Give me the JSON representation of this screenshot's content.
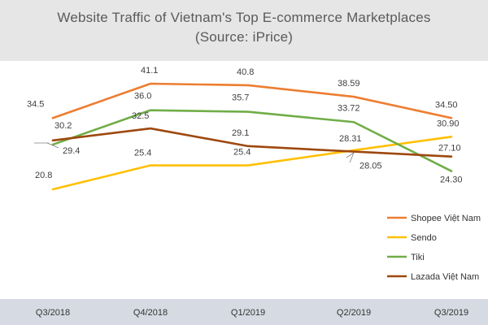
{
  "chart_data": {
    "type": "line",
    "title": "Website Traffic of Vietnam's Top E-commerce Marketplaces",
    "subtitle": "(Source:  iPrice)",
    "categories": [
      "Q3/2018",
      "Q4/2018",
      "Q1/2019",
      "Q2/2019",
      "Q3/2019"
    ],
    "xlabel": "",
    "ylabel": "",
    "ylim": [
      10,
      50
    ],
    "grid": false,
    "legend_position": "right",
    "series": [
      {
        "name": "Shopee Việt Nam",
        "color": "#ed7d31",
        "values": [
          34.5,
          41.1,
          40.8,
          38.59,
          34.5
        ],
        "labels": [
          "34.5",
          "41.1",
          "40.8",
          "38.59",
          "34.50"
        ]
      },
      {
        "name": "Sendo",
        "color": "#ffc000",
        "values": [
          20.8,
          25.4,
          25.4,
          28.31,
          30.9
        ],
        "labels": [
          "20.8",
          "25.4",
          "25.4",
          "28.31",
          "30.90"
        ]
      },
      {
        "name": "Tiki",
        "color": "#70ad47",
        "values": [
          29.4,
          36.0,
          35.7,
          33.72,
          24.3
        ],
        "labels": [
          "29.4",
          "36.0",
          "35.7",
          "33.72",
          "24.30"
        ]
      },
      {
        "name": "Lazada Việt Nam",
        "color": "#9e480e",
        "values": [
          30.2,
          32.5,
          29.1,
          28.05,
          27.1
        ],
        "labels": [
          "30.2",
          "32.5",
          "29.1",
          "28.05",
          "27.10"
        ]
      }
    ]
  }
}
